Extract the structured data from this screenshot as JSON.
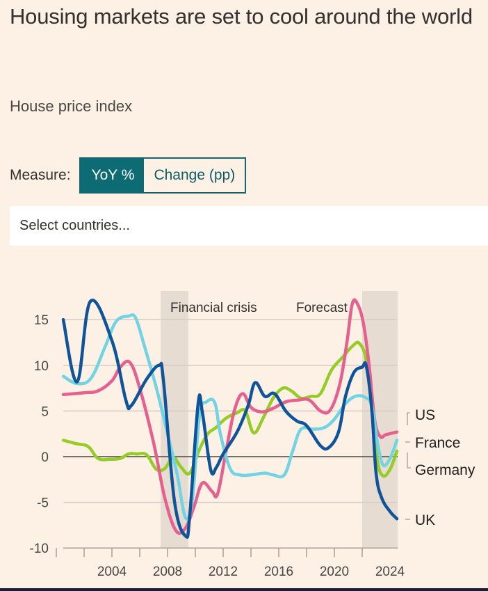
{
  "header": {
    "title": "Housing markets are set to cool around the world",
    "subtitle": "House price index"
  },
  "controls": {
    "measure_label": "Measure:",
    "options": [
      {
        "label": "YoY %",
        "active": true
      },
      {
        "label": "Change (pp)",
        "active": false
      }
    ],
    "country_select_placeholder": "Select countries..."
  },
  "colors": {
    "accent": "#0d6b74",
    "background": "#fdf1e6"
  },
  "chart_data": {
    "type": "line",
    "title": "House price index",
    "xlabel": "",
    "ylabel": "",
    "xlim": [
      2000.5,
      2024.55
    ],
    "ylim": [
      -10,
      17
    ],
    "yticks": [
      15,
      10,
      5,
      0,
      -5,
      -10
    ],
    "xticks_labeled": [
      2004,
      2008,
      2012,
      2016,
      2020,
      2024
    ],
    "xticks_minor": [
      2002,
      2004,
      2006,
      2008,
      2010,
      2012,
      2014,
      2016,
      2018,
      2020,
      2022,
      2024
    ],
    "grid": true,
    "shaded_regions": [
      {
        "label": "Financial crisis",
        "from": 2007.5,
        "to": 2009.5
      },
      {
        "label": "Forecast",
        "from": 2022,
        "to": 2024.55
      }
    ],
    "legend": "right-end labels",
    "series": [
      {
        "name": "UK",
        "color": "#0f5499",
        "x": [
          2000.5,
          2001.5,
          2002.45,
          2004,
          2005,
          2005.4,
          2006.5,
          2007.4,
          2007.7,
          2008.5,
          2009.3,
          2009.6,
          2010.2,
          2010.5,
          2011.1,
          2011.5,
          2012,
          2013,
          2013.8,
          2014.3,
          2015,
          2015.7,
          2016.5,
          2017.3,
          2018,
          2019,
          2019.6,
          2020.3,
          2020.8,
          2021.4,
          2022,
          2022.3,
          2022.7,
          2023,
          2023.4,
          2024,
          2024.5
        ],
        "y": [
          15,
          8.2,
          17,
          12.7,
          6.2,
          5.6,
          8.5,
          10,
          8.4,
          -4.9,
          -8.7,
          -6.4,
          5.8,
          4.9,
          -1.4,
          -1.2,
          0.3,
          2.7,
          5.6,
          8.1,
          6.6,
          6.9,
          5,
          3.9,
          3.4,
          1.2,
          1,
          2.7,
          6.6,
          9.2,
          9.8,
          9.9,
          5,
          -1.8,
          -4.5,
          -6,
          -6.8
        ]
      },
      {
        "name": "US",
        "color": "#e5608e",
        "x": [
          2000.5,
          2002,
          2003,
          2004,
          2004.6,
          2005.3,
          2006,
          2007,
          2007.8,
          2008.6,
          2009.3,
          2009.9,
          2010.5,
          2011.2,
          2011.6,
          2012.2,
          2012.8,
          2013.4,
          2014,
          2014.8,
          2015.6,
          2016.5,
          2017.4,
          2018.2,
          2019,
          2019.7,
          2020.4,
          2020.9,
          2021.3,
          2021.7,
          2022.1,
          2022.5,
          2022.9,
          2023.3,
          2023.7,
          2024.5
        ],
        "y": [
          6.8,
          7,
          7.2,
          8.3,
          9.8,
          10.3,
          7.5,
          1.5,
          -4.5,
          -8.1,
          -7.8,
          -5.5,
          -2.9,
          -3.8,
          -4.1,
          0.5,
          5,
          6.9,
          5.4,
          4.9,
          5.3,
          6,
          6.2,
          6.2,
          5,
          5.1,
          8,
          12.5,
          16.8,
          16.6,
          14.5,
          10,
          4,
          2.2,
          2.4,
          2.7
        ]
      },
      {
        "name": "France",
        "color": "#72d3e3",
        "x": [
          2000.5,
          2001.5,
          2002.5,
          2003.5,
          2004.3,
          2005.2,
          2005.7,
          2006.3,
          2007.2,
          2008,
          2008.7,
          2009.3,
          2009.8,
          2010.3,
          2010.8,
          2011.4,
          2011.8,
          2012.5,
          2013.2,
          2014,
          2015,
          2015.6,
          2016.4,
          2017,
          2017.6,
          2018.5,
          2019.3,
          2020,
          2020.8,
          2021.5,
          2022.2,
          2022.7,
          2023.1,
          2023.5,
          2024,
          2024.5
        ],
        "y": [
          8.8,
          8,
          8.6,
          12,
          14.8,
          15.4,
          15.2,
          12.3,
          7.5,
          2.5,
          -2,
          -6.7,
          -4.5,
          4.5,
          6,
          5.9,
          2.5,
          -1.3,
          -2,
          -2,
          -1.8,
          -2,
          -2,
          0.6,
          3,
          3,
          3.2,
          4.1,
          5.8,
          6.6,
          6.5,
          5.5,
          1.5,
          -0.9,
          -0.2,
          1.8
        ]
      },
      {
        "name": "Germany",
        "color": "#96cc28",
        "x": [
          2000.5,
          2001.5,
          2002.3,
          2003,
          2003.8,
          2004.6,
          2005.2,
          2005.8,
          2006.5,
          2007.2,
          2007.8,
          2008.4,
          2009,
          2009.6,
          2010.3,
          2010.9,
          2011.5,
          2012.2,
          2013,
          2013.6,
          2014.2,
          2014.9,
          2015.6,
          2016.3,
          2016.9,
          2017.6,
          2018.3,
          2019,
          2019.8,
          2020.6,
          2021.3,
          2021.8,
          2022.3,
          2022.7,
          2023.1,
          2023.5,
          2024,
          2024.5
        ],
        "y": [
          1.8,
          1.4,
          1.1,
          -0.2,
          -0.3,
          -0.2,
          0.3,
          0.3,
          0.2,
          -1.4,
          -1.3,
          -0.1,
          -1.2,
          -1.8,
          0.8,
          2.5,
          3.2,
          4.2,
          4.8,
          5,
          2.6,
          4.3,
          6.4,
          7.5,
          7.2,
          6.4,
          6.6,
          6.9,
          9.5,
          10.9,
          12.1,
          12.4,
          10.5,
          5,
          -0.5,
          -2.1,
          -1.4,
          0.6
        ]
      }
    ],
    "end_labels": [
      "US",
      "France",
      "Germany",
      "UK"
    ],
    "zero_line": true
  }
}
